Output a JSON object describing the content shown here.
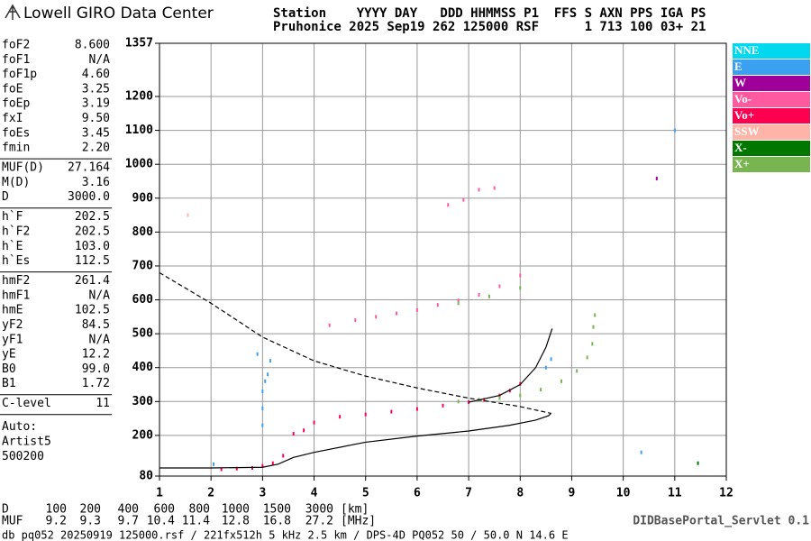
{
  "header": {
    "brand": "Lowell GIRO Data Center",
    "line1": "Station    YYYY DAY   DDD HHMMSS P1  FFS S AXN PPS IGA PS",
    "line2": "Pruhonice 2025 Sep19 262 125000 RSF      1 713 100 03+ 21"
  },
  "parameters": [
    [
      [
        "foF2",
        "8.600"
      ],
      [
        "foF1",
        "N/A"
      ],
      [
        "foF1p",
        "4.60"
      ],
      [
        "foE",
        "3.25"
      ],
      [
        "foEp",
        "3.19"
      ],
      [
        "fxI",
        "9.50"
      ],
      [
        "foEs",
        "3.45"
      ],
      [
        "fmin",
        "2.20"
      ]
    ],
    [
      [
        "MUF(D)",
        "27.164"
      ],
      [
        "M(D)",
        "3.16"
      ],
      [
        "D",
        "3000.0"
      ]
    ],
    [
      [
        "h`F",
        "202.5"
      ],
      [
        "h`F2",
        "202.5"
      ],
      [
        "h`E",
        "103.0"
      ],
      [
        "h`Es",
        "112.5"
      ]
    ],
    [
      [
        "hmF2",
        "261.4"
      ],
      [
        "hmF1",
        "N/A"
      ],
      [
        "hmE",
        "102.5"
      ],
      [
        "yF2",
        "84.5"
      ],
      [
        "yF1",
        "N/A"
      ],
      [
        "yE",
        "12.2"
      ],
      [
        "B0",
        "99.0"
      ],
      [
        "B1",
        "1.72"
      ]
    ],
    [
      [
        "C-level",
        "11"
      ]
    ]
  ],
  "autoscaling": [
    "Auto:",
    "Artist5",
    "500200"
  ],
  "muf_table": {
    "d_label": "D",
    "d_values": [
      "100",
      "200",
      "400",
      "600",
      "800",
      "1000",
      "1500",
      "3000"
    ],
    "d_unit": "[km]",
    "muf_label": "MUF",
    "muf_values": [
      "9.2",
      "9.3",
      "9.7",
      "10.4",
      "11.4",
      "12.8",
      "16.8",
      "27.2"
    ],
    "muf_unit": "[MHz]"
  },
  "footer": {
    "file": "db pq052 20250919 125000.rsf / 221fx512h 5 kHz 2.5 km / DPS-4D PQ052 50 / 50.0 N 14.6 E",
    "servlet": "DIDBasePortal_Servlet 0.1"
  },
  "chart_data": {
    "type": "scatter",
    "xlim": [
      1,
      12
    ],
    "xticks": [
      1,
      2,
      3,
      4,
      5,
      6,
      7,
      8,
      9,
      10,
      11,
      12
    ],
    "ylim": [
      80,
      1357
    ],
    "yticks": [
      80,
      200,
      300,
      400,
      500,
      600,
      700,
      800,
      900,
      1000,
      1100,
      1200,
      1357
    ],
    "grid": true,
    "series": [
      {
        "name": "NNE",
        "color": "#00d8f0",
        "x": [],
        "values": []
      },
      {
        "name": "E",
        "color": "#3ca0f0",
        "x": [
          3.0,
          3.0,
          3.0,
          3.05,
          3.1,
          3.15,
          2.9,
          8.5,
          8.6,
          11.0,
          10.35,
          2.05
        ],
        "values": [
          230,
          280,
          330,
          360,
          380,
          420,
          440,
          400,
          425,
          1100,
          150,
          115
        ]
      },
      {
        "name": "W",
        "color": "#a0009a",
        "x": [
          10.65
        ],
        "values": [
          958
        ]
      },
      {
        "name": "Vo-",
        "color": "#ff5aa0",
        "x": [
          4.3,
          4.8,
          5.2,
          5.6,
          6.0,
          6.4,
          6.8,
          7.2,
          7.6,
          8.0,
          6.6,
          6.9,
          7.2,
          7.5
        ],
        "values": [
          525,
          540,
          550,
          560,
          570,
          585,
          598,
          615,
          640,
          672,
          880,
          895,
          925,
          930
        ]
      },
      {
        "name": "Vo+",
        "color": "#ff0050",
        "x": [
          2.2,
          2.5,
          2.8,
          3.0,
          3.2,
          3.4,
          3.6,
          3.8,
          4.0,
          4.5,
          5.0,
          5.5,
          6.0,
          6.5,
          7.0,
          7.3,
          7.6,
          7.8,
          8.0
        ],
        "values": [
          100,
          102,
          104,
          110,
          118,
          140,
          205,
          215,
          238,
          255,
          262,
          270,
          278,
          288,
          298,
          305,
          318,
          332,
          352
        ]
      },
      {
        "name": "SSW",
        "color": "#ffb4a8",
        "x": [
          1.55
        ],
        "values": [
          850
        ]
      },
      {
        "name": "X-",
        "color": "#007800",
        "x": [
          11.45
        ],
        "values": [
          118
        ]
      },
      {
        "name": "X+",
        "color": "#78b450",
        "x": [
          6.8,
          7.2,
          7.6,
          8.0,
          8.4,
          8.8,
          9.1,
          9.3,
          9.4,
          9.42,
          9.45,
          6.8,
          7.4,
          8.0
        ],
        "values": [
          300,
          305,
          310,
          318,
          335,
          360,
          390,
          430,
          470,
          520,
          555,
          590,
          610,
          635
        ]
      },
      {
        "type": "line",
        "color": "#000000",
        "x": [
          7.0,
          7.6,
          8.0,
          8.3,
          8.5,
          8.62
        ],
        "values": [
          298,
          318,
          350,
          400,
          460,
          515
        ]
      },
      {
        "type": "line",
        "color": "#000000",
        "x": [
          1,
          2,
          3,
          3.3,
          3.6,
          4,
          5,
          6,
          7,
          7.8,
          8.3,
          8.55,
          8.6
        ],
        "values": [
          104,
          104,
          106,
          115,
          135,
          150,
          180,
          198,
          213,
          230,
          245,
          258,
          265
        ]
      },
      {
        "type": "line",
        "color": "#000000",
        "dash": true,
        "x": [
          1,
          2,
          3,
          4,
          5,
          6,
          7,
          8,
          8.6
        ],
        "values": [
          680,
          590,
          490,
          420,
          375,
          340,
          310,
          285,
          265
        ]
      }
    ]
  }
}
